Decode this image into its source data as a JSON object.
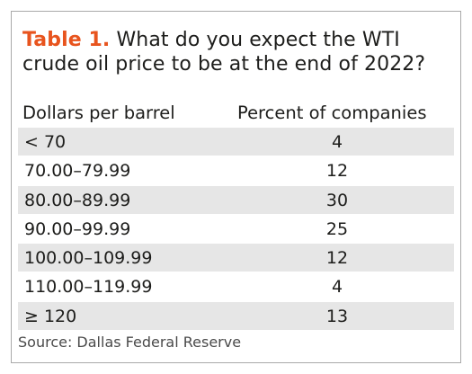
{
  "title": {
    "label": "Table 1.",
    "text": "What do you expect the WTI crude oil price to be at the end of 2022?"
  },
  "colors": {
    "accent": "#e8541e",
    "row_shade": "#e6e6e6",
    "border": "#a9a9a9"
  },
  "chart_data": {
    "type": "table",
    "title": "Table 1. What do you expect the WTI crude oil price to be at the end of 2022?",
    "columns": [
      "Dollars per barrel",
      "Percent of companies"
    ],
    "categories": [
      "< 70",
      "70.00–79.99",
      "80.00–89.99",
      "90.00–99.99",
      "100.00–109.99",
      "110.00–119.99",
      "≥ 120"
    ],
    "values": [
      4,
      12,
      30,
      25,
      12,
      4,
      13
    ],
    "source": "Source: Dallas Federal Reserve"
  }
}
